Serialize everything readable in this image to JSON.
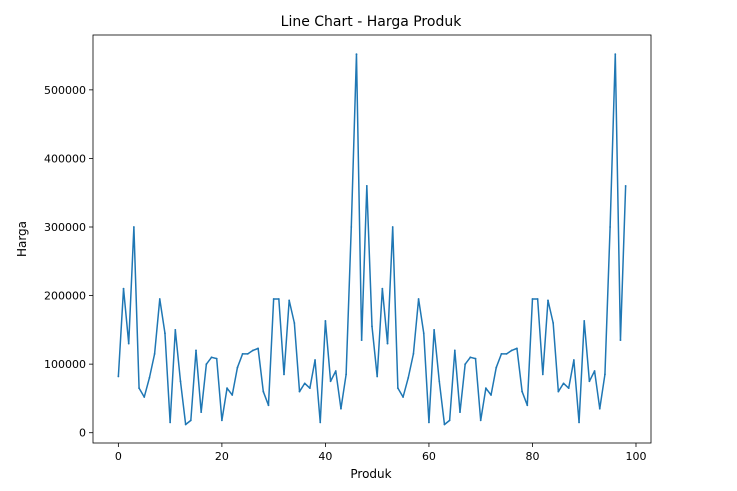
{
  "chart_data": {
    "type": "line",
    "title": "Line Chart - Harga Produk",
    "xlabel": "Produk",
    "ylabel": "Harga",
    "xlim": [
      -4.9,
      102.9
    ],
    "ylim": [
      -15000,
      580000
    ],
    "xticks": [
      0,
      20,
      40,
      60,
      80,
      100
    ],
    "yticks": [
      0,
      100000,
      200000,
      300000,
      400000,
      500000
    ],
    "grid": false,
    "legend": "none",
    "line_color": "#1f77b4",
    "series": [
      {
        "values": [
          82000,
          210000,
          130000,
          300000,
          65000,
          52000,
          80000,
          115000,
          195000,
          145000,
          15000,
          150000,
          75000,
          12000,
          18000,
          120000,
          30000,
          100000,
          110000,
          108000,
          18000,
          65000,
          55000,
          95000,
          115000,
          115000,
          120000,
          123000,
          60000,
          40000,
          195000,
          195000,
          85000,
          193000,
          160000,
          60000,
          72000,
          65000,
          106000,
          15000,
          163000,
          75000,
          90000,
          35000,
          85000,
          300000,
          552000,
          135000,
          360000,
          155000,
          82000,
          210000,
          130000,
          300000,
          65000,
          52000,
          80000,
          115000,
          195000,
          145000,
          15000,
          150000,
          75000,
          12000,
          18000,
          120000,
          30000,
          100000,
          110000,
          108000,
          18000,
          65000,
          55000,
          95000,
          115000,
          115000,
          120000,
          123000,
          60000,
          40000,
          195000,
          195000,
          85000,
          193000,
          160000,
          60000,
          72000,
          65000,
          106000,
          15000,
          163000,
          75000,
          90000,
          35000,
          85000,
          300000,
          552000,
          135000,
          360000
        ]
      }
    ]
  }
}
